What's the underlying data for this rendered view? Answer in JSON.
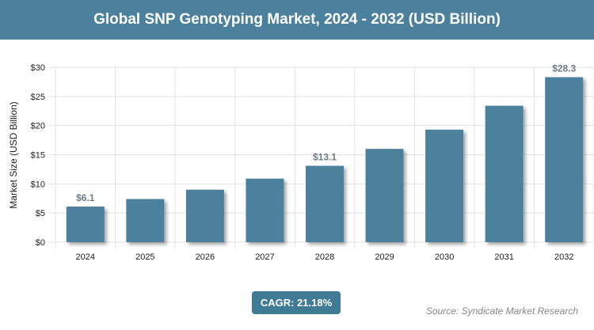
{
  "header": {
    "title": "Global SNP Genotyping Market, 2024 - 2032 (USD Billion)"
  },
  "chart_data": {
    "type": "bar",
    "title": "Global SNP Genotyping Market, 2024 - 2032 (USD Billion)",
    "ylabel": "Market Size (USD Billion)",
    "xlabel": "",
    "categories": [
      "2024",
      "2025",
      "2026",
      "2027",
      "2028",
      "2029",
      "2030",
      "2031",
      "2032"
    ],
    "values": [
      6.1,
      7.4,
      9.0,
      10.9,
      13.1,
      16.0,
      19.3,
      23.4,
      28.3
    ],
    "data_labels": {
      "0": "$6.1",
      "4": "$13.1",
      "8": "$28.3"
    },
    "ylim": [
      0,
      30
    ],
    "yticks": [
      "$0",
      "$5",
      "$10",
      "$15",
      "$20",
      "$25",
      "$30"
    ],
    "grid": true,
    "bar_color": "#4b819c"
  },
  "footer": {
    "cagr": "CAGR: 21.18%",
    "source": "Source: Syndicate Market Research"
  }
}
